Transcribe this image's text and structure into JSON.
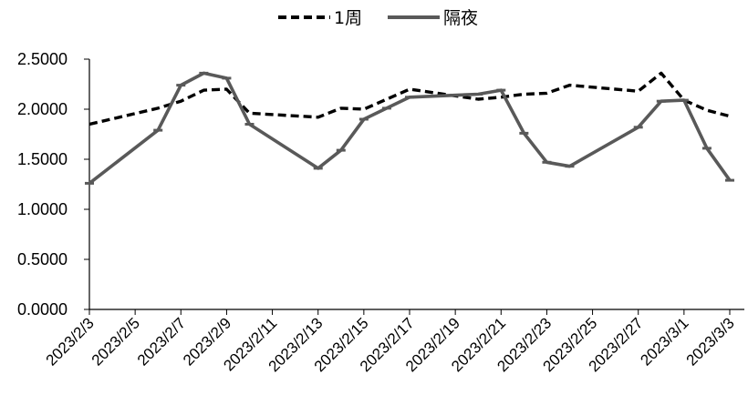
{
  "chart_data": {
    "type": "line",
    "title": "",
    "xlabel": "",
    "ylabel": "",
    "ylim": [
      0,
      2.5
    ],
    "xlim": [
      "2023-02-03",
      "2023-03-03"
    ],
    "grid": false,
    "legend_position": "top",
    "y_ticks": [
      "0.0000",
      "0.5000",
      "1.0000",
      "1.5000",
      "2.0000",
      "2.5000"
    ],
    "x_ticks": [
      "2023/2/3",
      "2023/2/5",
      "2023/2/7",
      "2023/2/9",
      "2023/2/11",
      "2023/2/13",
      "2023/2/15",
      "2023/2/17",
      "2023/2/19",
      "2023/2/21",
      "2023/2/23",
      "2023/2/25",
      "2023/2/27",
      "2023/3/1",
      "2023/3/3"
    ],
    "series": [
      {
        "name": "1周",
        "style": "dashed",
        "color": "#000000",
        "points": [
          {
            "x": "2023-02-03",
            "y": 1.85
          },
          {
            "x": "2023-02-06",
            "y": 2.01
          },
          {
            "x": "2023-02-07",
            "y": 2.08
          },
          {
            "x": "2023-02-08",
            "y": 2.19
          },
          {
            "x": "2023-02-09",
            "y": 2.2
          },
          {
            "x": "2023-02-10",
            "y": 1.96
          },
          {
            "x": "2023-02-13",
            "y": 1.92
          },
          {
            "x": "2023-02-14",
            "y": 2.01
          },
          {
            "x": "2023-02-15",
            "y": 2.0
          },
          {
            "x": "2023-02-16",
            "y": 2.1
          },
          {
            "x": "2023-02-17",
            "y": 2.2
          },
          {
            "x": "2023-02-20",
            "y": 2.1
          },
          {
            "x": "2023-02-21",
            "y": 2.12
          },
          {
            "x": "2023-02-22",
            "y": 2.15
          },
          {
            "x": "2023-02-23",
            "y": 2.16
          },
          {
            "x": "2023-02-24",
            "y": 2.24
          },
          {
            "x": "2023-02-27",
            "y": 2.18
          },
          {
            "x": "2023-02-28",
            "y": 2.36
          },
          {
            "x": "2023-03-01",
            "y": 2.09
          },
          {
            "x": "2023-03-02",
            "y": 1.99
          },
          {
            "x": "2023-03-03",
            "y": 1.93
          }
        ]
      },
      {
        "name": "隔夜",
        "style": "solid",
        "color": "#595959",
        "points": [
          {
            "x": "2023-02-03",
            "y": 1.26
          },
          {
            "x": "2023-02-06",
            "y": 1.79
          },
          {
            "x": "2023-02-07",
            "y": 2.24
          },
          {
            "x": "2023-02-08",
            "y": 2.36
          },
          {
            "x": "2023-02-09",
            "y": 2.31
          },
          {
            "x": "2023-02-10",
            "y": 1.85
          },
          {
            "x": "2023-02-13",
            "y": 1.41
          },
          {
            "x": "2023-02-14",
            "y": 1.59
          },
          {
            "x": "2023-02-15",
            "y": 1.9
          },
          {
            "x": "2023-02-16",
            "y": 2.01
          },
          {
            "x": "2023-02-17",
            "y": 2.12
          },
          {
            "x": "2023-02-20",
            "y": 2.15
          },
          {
            "x": "2023-02-21",
            "y": 2.19
          },
          {
            "x": "2023-02-22",
            "y": 1.76
          },
          {
            "x": "2023-02-23",
            "y": 1.47
          },
          {
            "x": "2023-02-24",
            "y": 1.43
          },
          {
            "x": "2023-02-27",
            "y": 1.82
          },
          {
            "x": "2023-02-28",
            "y": 2.08
          },
          {
            "x": "2023-03-01",
            "y": 2.09
          },
          {
            "x": "2023-03-02",
            "y": 1.61
          },
          {
            "x": "2023-03-03",
            "y": 1.29
          }
        ]
      }
    ]
  }
}
